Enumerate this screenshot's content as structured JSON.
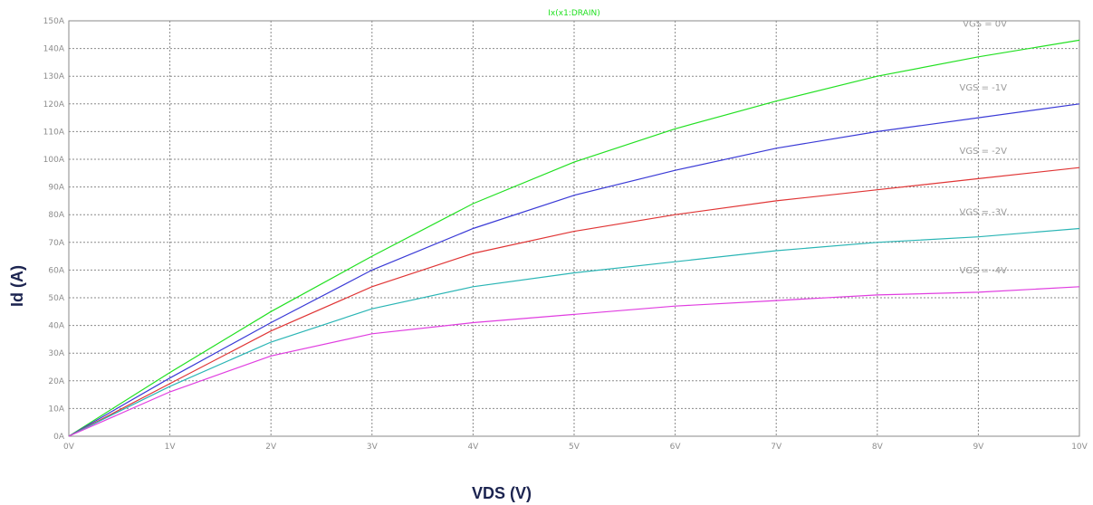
{
  "chart_data": {
    "type": "line",
    "title": "Ix(x1:DRAIN)",
    "xlabel": "VDS (V)",
    "ylabel": "Id (A)",
    "xlim": [
      0,
      10
    ],
    "ylim": [
      0,
      150
    ],
    "grid": true,
    "x_ticks": [
      "0V",
      "1V",
      "2V",
      "3V",
      "4V",
      "5V",
      "6V",
      "7V",
      "8V",
      "9V",
      "10V"
    ],
    "y_ticks": [
      "0A",
      "10A",
      "20A",
      "30A",
      "40A",
      "50A",
      "60A",
      "70A",
      "80A",
      "90A",
      "100A",
      "110A",
      "120A",
      "130A",
      "140A",
      "150A"
    ],
    "x": [
      0,
      1,
      2,
      3,
      4,
      5,
      6,
      7,
      8,
      9,
      10
    ],
    "series": [
      {
        "name": "VGS = 0V",
        "color": "#22e022",
        "values": [
          0,
          23,
          45,
          65,
          84,
          99,
          111,
          121,
          130,
          137,
          143
        ]
      },
      {
        "name": "VGS = -1V",
        "color": "#3a3ad6",
        "values": [
          0,
          21,
          41,
          60,
          75,
          87,
          96,
          104,
          110,
          115,
          120
        ]
      },
      {
        "name": "VGS = -2V",
        "color": "#e03535",
        "values": [
          0,
          19,
          38,
          54,
          66,
          74,
          80,
          85,
          89,
          93,
          97
        ]
      },
      {
        "name": "VGS = -3V",
        "color": "#2ab5b5",
        "values": [
          0,
          18,
          34,
          46,
          54,
          59,
          63,
          67,
          70,
          72,
          75
        ]
      },
      {
        "name": "VGS = -4V",
        "color": "#e03de0",
        "values": [
          0,
          16,
          29,
          37,
          41,
          44,
          47,
          49,
          51,
          52,
          54
        ]
      }
    ]
  }
}
